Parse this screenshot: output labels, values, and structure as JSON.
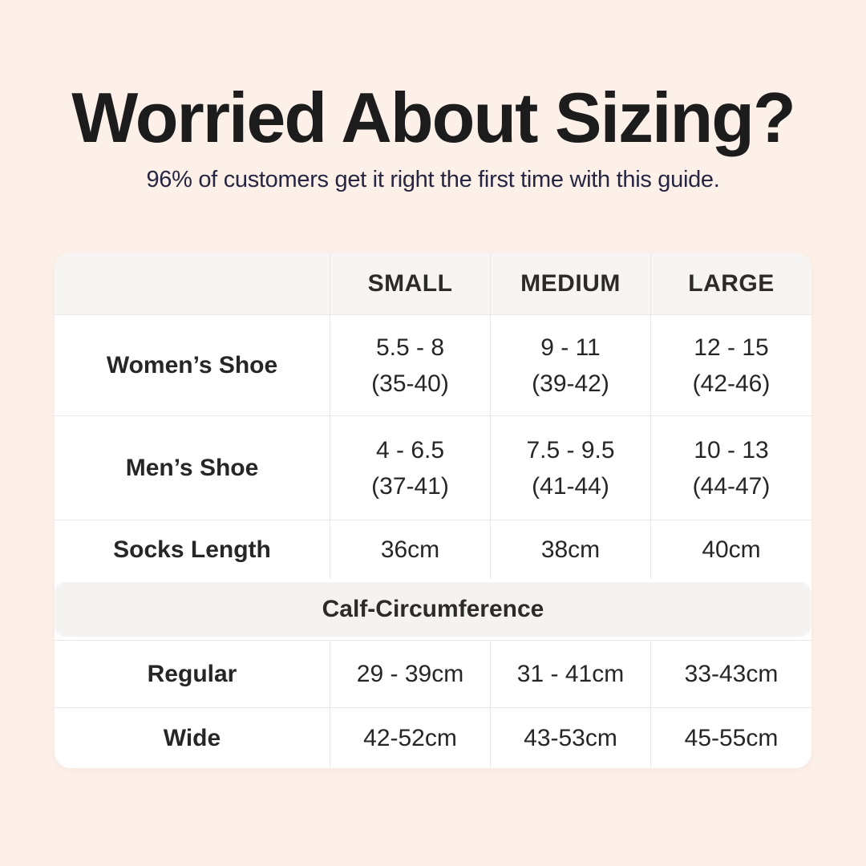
{
  "page": {
    "title": "Worried About Sizing?",
    "subtitle": "96% of customers get it right the first time with this guide."
  },
  "colors": {
    "page_background": "#fcf0e8",
    "card_background": "#ffffff",
    "header_row_background": "#f6f5f3",
    "section_band_background": "#f4f3f1",
    "grid_line": "#e9e7e4",
    "title_text": "#1c1c1c",
    "subtitle_text": "#262642",
    "cell_text": "#262626"
  },
  "table": {
    "column_headers": [
      "",
      "SMALL",
      "MEDIUM",
      "LARGE"
    ],
    "rows": [
      {
        "label": "Women’s Shoe",
        "values": [
          [
            "5.5 - 8",
            "(35-40)"
          ],
          [
            "9 - 11",
            "(39-42)"
          ],
          [
            "12 - 15",
            "(42-46)"
          ]
        ]
      },
      {
        "label": "Men’s Shoe",
        "values": [
          [
            "4 - 6.5",
            "(37-41)"
          ],
          [
            "7.5 - 9.5",
            "(41-44)"
          ],
          [
            "10 - 13",
            "(44-47)"
          ]
        ]
      },
      {
        "label": "Socks Length",
        "values": [
          [
            "36cm"
          ],
          [
            "38cm"
          ],
          [
            "40cm"
          ]
        ]
      }
    ],
    "section_header": "Calf-Circumference",
    "section_rows": [
      {
        "label": "Regular",
        "values": [
          [
            "29 - 39cm"
          ],
          [
            "31 - 41cm"
          ],
          [
            "33-43cm"
          ]
        ]
      },
      {
        "label": "Wide",
        "values": [
          [
            "42-52cm"
          ],
          [
            "43-53cm"
          ],
          [
            "45-55cm"
          ]
        ]
      }
    ]
  },
  "chart_data": {
    "type": "table",
    "title": "Worried About Sizing?",
    "subtitle": "96% of customers get it right the first time with this guide.",
    "columns": [
      "",
      "SMALL",
      "MEDIUM",
      "LARGE"
    ],
    "rows": [
      [
        "Women’s Shoe",
        "5.5 - 8 (35-40)",
        "9 - 11 (39-42)",
        "12 - 15 (42-46)"
      ],
      [
        "Men’s Shoe",
        "4 - 6.5 (37-41)",
        "7.5 - 9.5 (41-44)",
        "10 - 13 (44-47)"
      ],
      [
        "Socks Length",
        "36cm",
        "38cm",
        "40cm"
      ],
      [
        "Calf-Circumference",
        "",
        "",
        ""
      ],
      [
        "Regular",
        "29 - 39cm",
        "31 - 41cm",
        "33-43cm"
      ],
      [
        "Wide",
        "42-52cm",
        "43-53cm",
        "45-55cm"
      ]
    ],
    "layout": {
      "section_header_row_index": 3,
      "grid": true,
      "header_row_shaded": true
    }
  }
}
